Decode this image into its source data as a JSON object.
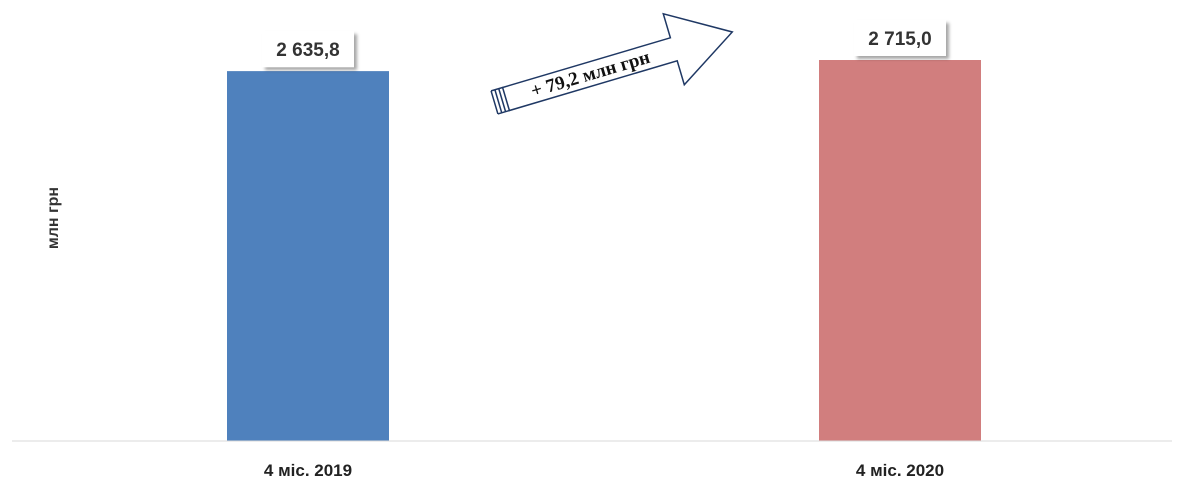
{
  "chart_data": {
    "type": "bar",
    "categories": [
      "4 міс. 2019",
      "4 міс. 2020"
    ],
    "values": [
      2635.8,
      2715.0
    ],
    "value_labels": [
      "2 635,8",
      "2 715,0"
    ],
    "colors": [
      "#4F81BD",
      "#D17E7E"
    ],
    "ylabel": "млн грн",
    "ylim": [
      0,
      2715.0
    ],
    "grid": false,
    "legend": "none",
    "annotation": "+ 79,2 млн грн"
  }
}
